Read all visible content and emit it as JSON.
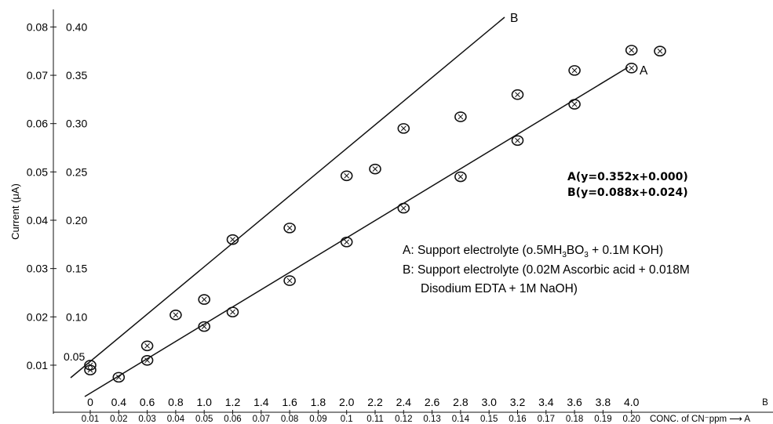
{
  "chart_data": {
    "type": "scatter",
    "ylabel": "Current (μA)",
    "xlabel": "CONC. of CN⁻ppm",
    "x_axis_B": {
      "marker": "B",
      "range": [
        0,
        4.0
      ],
      "ticks": [
        "0",
        "0.4",
        "0.6",
        "0.8",
        "1.0",
        "1.2",
        "1.4",
        "1.6",
        "1.8",
        "2.0",
        "2.2",
        "2.4",
        "2.6",
        "2.8",
        "3.0",
        "3.2",
        "3.4",
        "3.6",
        "3.8",
        "4.0"
      ]
    },
    "x_axis_A": {
      "marker": "A",
      "range": [
        0.01,
        0.2
      ],
      "ticks": [
        "0.01",
        "0.02",
        "0.03",
        "0.04",
        "0.05",
        "0.06",
        "0.07",
        "0.08",
        "0.09",
        "0.1",
        "0.11",
        "0.12",
        "0.13",
        "0.14",
        "0.15",
        "0.16",
        "0.17",
        "0.18",
        "0.19",
        "0.20"
      ]
    },
    "y_axis_left": {
      "range": [
        0.0,
        0.08
      ],
      "ticks": [
        "0.01",
        "0.02",
        "0.03",
        "0.04",
        "0.05",
        "0.06",
        "0.07",
        "0.08"
      ]
    },
    "y_axis_right": {
      "range": [
        0.0,
        0.4
      ],
      "ticks": [
        "0.05",
        "0.10",
        "0.15",
        "0.20",
        "0.25",
        "0.30",
        "0.35",
        "0.40"
      ]
    },
    "series": [
      {
        "name": "A",
        "x_units": "A (ppm)",
        "x": [
          0.01,
          0.02,
          0.03,
          0.05,
          0.06,
          0.08,
          0.1,
          0.12,
          0.14,
          0.16,
          0.18,
          0.2
        ],
        "y": [
          0.009,
          0.0075,
          0.011,
          0.018,
          0.021,
          0.0275,
          0.0355,
          0.0425,
          0.049,
          0.0565,
          0.064,
          0.0715
        ]
      },
      {
        "name": "B",
        "x_units": "B (ppm)",
        "x": [
          0,
          0.4,
          0.6,
          0.8,
          1.0,
          1.4,
          1.8,
          2.0,
          2.2,
          2.6,
          3.0,
          3.4,
          3.8,
          4.0
        ],
        "y": [
          0.05,
          0.07,
          0.102,
          0.118,
          0.18,
          0.192,
          0.246,
          0.253,
          0.295,
          0.307,
          0.33,
          0.355,
          0.376,
          0.375
        ]
      }
    ],
    "lines": [
      {
        "name": "A",
        "label": "A"
      },
      {
        "name": "B",
        "label": "B"
      }
    ],
    "equations": [
      "A(y=0.352x+0.000)",
      "B(y=0.088x+0.024)"
    ],
    "legend": {
      "A": [
        "A: Support electrolyte (o.5MH",
        "3",
        "BO",
        "3",
        " + 0.1M KOH)"
      ],
      "B": [
        "B: Support electrolyte (0.02M Ascorbic acid + 0.018M",
        "Disodium EDTA + 1M NaOH)"
      ]
    },
    "legend_position": "right"
  }
}
